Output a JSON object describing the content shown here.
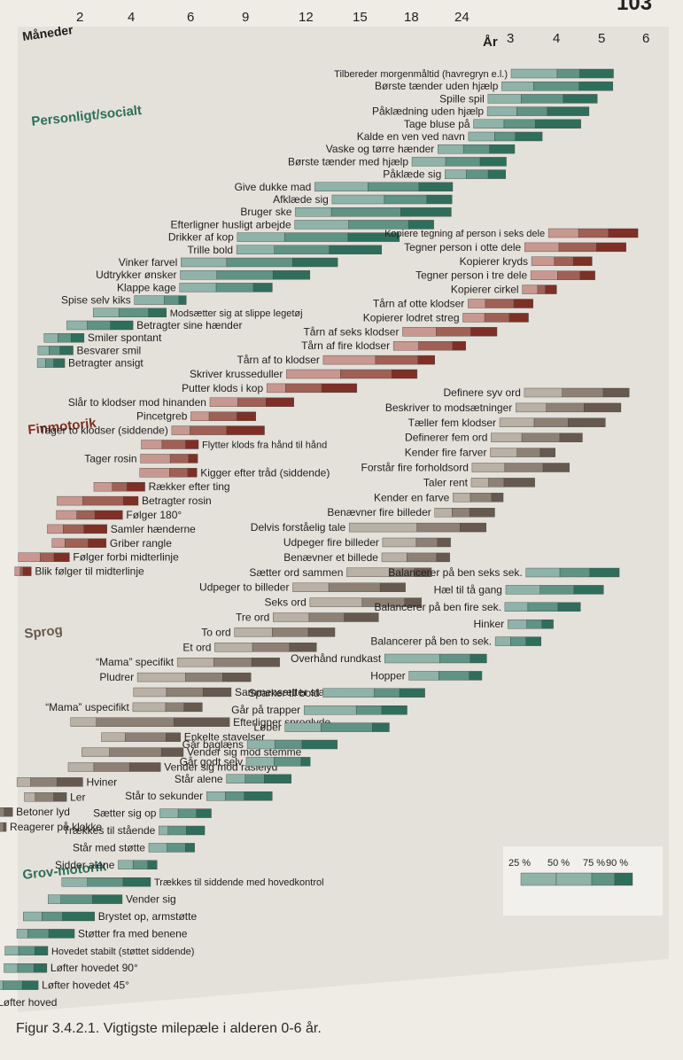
{
  "page_number": "103",
  "caption": "Figur 3.4.2.1. Vigtigste milepæle i alderen 0-6 år.",
  "colors": {
    "background": "#efece6",
    "panel": "#e4e1da",
    "personligt_socialt": {
      "light": "#8fb3a8",
      "mid": "#5f9384",
      "dark": "#2f6e5b"
    },
    "finmotorik": {
      "light": "#c89890",
      "mid": "#a06055",
      "dark": "#7e2f26"
    },
    "sprog": {
      "light": "#b9b0a6",
      "mid": "#8d8176",
      "dark": "#66594f"
    },
    "grovmotorik": {
      "light": "#8fb3a8",
      "mid": "#5f9384",
      "dark": "#2f6e5b"
    }
  },
  "chart_data": {
    "type": "bar",
    "subtype": "range-bars",
    "axis": {
      "label_months": "Måneder",
      "label_years": "År",
      "ticks": [
        {
          "label": "2",
          "months": 2
        },
        {
          "label": "4",
          "months": 4
        },
        {
          "label": "6",
          "months": 6
        },
        {
          "label": "9",
          "months": 9
        },
        {
          "label": "12",
          "months": 12
        },
        {
          "label": "15",
          "months": 15
        },
        {
          "label": "18",
          "months": 18
        },
        {
          "label": "24",
          "months": 24
        },
        {
          "label": "3",
          "months": 36
        },
        {
          "label": "4",
          "months": 48
        },
        {
          "label": "5",
          "months": 60
        },
        {
          "label": "6",
          "months": 72
        }
      ]
    },
    "legend": {
      "labels": [
        "25 %",
        "50 %",
        "75 %",
        "90 %"
      ],
      "placement": "bottom-right"
    },
    "groups": [
      {
        "key": "personligt_socialt",
        "title": "Personligt/socialt",
        "items": [
          {
            "label": "Tilbereder morgenmåltid (havregryn e.l.)",
            "p25": 36,
            "p50": 48,
            "p75": 54,
            "p90": 63
          },
          {
            "label": "Børste tænder uden hjælp",
            "p25": 34,
            "p50": 42,
            "p75": 54,
            "p90": 63
          },
          {
            "label": "Spille spil",
            "p25": 31,
            "p50": 39,
            "p75": 50,
            "p90": 59
          },
          {
            "label": "Påklædning uden hjælp",
            "p25": 31,
            "p50": 38,
            "p75": 46,
            "p90": 57
          },
          {
            "label": "Tage bluse på",
            "p25": 28,
            "p50": 35,
            "p75": 43,
            "p90": 55
          },
          {
            "label": "Kalde en ven ved navn",
            "p25": 27,
            "p50": 33,
            "p75": 38,
            "p90": 45
          },
          {
            "label": "Vaske og tørre hænder",
            "p25": 22,
            "p50": 26,
            "p75": 32,
            "p90": 38
          },
          {
            "label": "Børste tænder med hjælp",
            "p25": 19,
            "p50": 23,
            "p75": 30,
            "p90": 36
          },
          {
            "label": "Påklæde sig",
            "p25": 23,
            "p50": 27,
            "p75": 32,
            "p90": 36
          },
          {
            "label": "Give dukke mad",
            "p25": 13,
            "p50": 16,
            "p75": 20,
            "p90": 24
          },
          {
            "label": "Afklæde sig",
            "p25": 14,
            "p50": 17,
            "p75": 21,
            "p90": 24
          },
          {
            "label": "Bruger ske",
            "p25": 12,
            "p50": 14,
            "p75": 18,
            "p90": 24
          },
          {
            "label": "Efterligner husligt arbejde",
            "p25": 12,
            "p50": 15,
            "p75": 19,
            "p90": 22
          },
          {
            "label": "Drikker af kop",
            "p25": 9,
            "p50": 11.5,
            "p75": 15,
            "p90": 18
          },
          {
            "label": "Trille bold",
            "p25": 9,
            "p50": 11,
            "p75": 14,
            "p90": 17
          },
          {
            "label": "Vinker farvel",
            "p25": 6,
            "p50": 8.5,
            "p75": 12,
            "p90": 14.5
          },
          {
            "label": "Udtrykker ønsker",
            "p25": 6,
            "p50": 8,
            "p75": 11,
            "p90": 13
          },
          {
            "label": "Klappe kage",
            "p25": 6,
            "p50": 8,
            "p75": 10,
            "p90": 11
          },
          {
            "label": "Spise selv kiks",
            "p25": 4.5,
            "p50": 5.5,
            "p75": 6,
            "p90": 6.4
          },
          {
            "label": "Modsætter sig at slippe legetøj",
            "p25": 3,
            "p50": 4,
            "p75": 5,
            "p90": 5.6
          },
          {
            "label": "Betragter sine hænder",
            "p25": 2,
            "p50": 2.8,
            "p75": 3.7,
            "p90": 4.5
          },
          {
            "label": "Smiler spontant",
            "p25": 1.2,
            "p50": 1.7,
            "p75": 2.2,
            "p90": 2.7
          },
          {
            "label": "Besvarer smil",
            "p25": 1,
            "p50": 1.4,
            "p75": 1.8,
            "p90": 2.3
          },
          {
            "label": "Betragter ansigt",
            "p25": 1,
            "p50": 1.3,
            "p75": 1.6,
            "p90": 2
          }
        ]
      },
      {
        "key": "finmotorik",
        "title": "Finmotorik",
        "items": [
          {
            "label": "Kopiere tegning af person i seks dele",
            "p25": 48,
            "p50": 56,
            "p75": 64,
            "p90": 72
          },
          {
            "label": "Tegner person i otte dele",
            "p25": 42,
            "p50": 51,
            "p75": 61,
            "p90": 69
          },
          {
            "label": "Kopierer kryds",
            "p25": 44,
            "p50": 50,
            "p75": 55,
            "p90": 60
          },
          {
            "label": "Tegner person i tre dele",
            "p25": 44,
            "p50": 51,
            "p75": 57,
            "p90": 61
          },
          {
            "label": "Kopierer cirkel",
            "p25": 42,
            "p50": 46,
            "p75": 48,
            "p90": 51
          },
          {
            "label": "Tårn af otte klodser",
            "p25": 29,
            "p50": 33,
            "p75": 40,
            "p90": 45
          },
          {
            "label": "Kopierer lodret streg",
            "p25": 28,
            "p50": 33,
            "p75": 39,
            "p90": 44
          },
          {
            "label": "Tårn af seks klodser",
            "p25": 19,
            "p50": 23,
            "p75": 30,
            "p90": 36
          },
          {
            "label": "Tårn af fire klodser",
            "p25": 18,
            "p50": 21,
            "p75": 26,
            "p90": 29
          },
          {
            "label": "Tårn af to klodser",
            "p25": 14,
            "p50": 17,
            "p75": 21,
            "p90": 23
          },
          {
            "label": "Skriver krusseduller",
            "p25": 12,
            "p50": 15,
            "p75": 18,
            "p90": 21
          },
          {
            "label": "Putter klods i kop",
            "p25": 11,
            "p50": 12,
            "p75": 14,
            "p90": 16
          },
          {
            "label": "Slår to klodser mod hinanden",
            "p25": 8,
            "p50": 9.5,
            "p75": 11,
            "p90": 12.5
          },
          {
            "label": "Pincetgreb",
            "p25": 7,
            "p50": 8,
            "p75": 9.5,
            "p90": 10.5
          },
          {
            "label": "Tager to klodser (siddende)",
            "p25": 6,
            "p50": 7,
            "p75": 9,
            "p90": 11
          },
          {
            "label": "Flytter klods fra hånd til hånd",
            "p25": 5,
            "p50": 5.7,
            "p75": 6.8,
            "p90": 7.5
          },
          {
            "label": "Tager rosin",
            "p25": 5,
            "p50": 6,
            "p75": 7,
            "p90": 7.5
          },
          {
            "label": "Kigger efter tråd (siddende)",
            "p25": 5,
            "p50": 6,
            "p75": 7,
            "p90": 7.5
          },
          {
            "label": "Rækker efter ting",
            "p25": 3.4,
            "p50": 4.1,
            "p75": 4.6,
            "p90": 5.2
          },
          {
            "label": "Betragter rosin",
            "p25": 2,
            "p50": 3,
            "p75": 4.5,
            "p90": 5
          },
          {
            "label": "Følger 180°",
            "p25": 2,
            "p50": 2.8,
            "p75": 3.5,
            "p90": 4.5
          },
          {
            "label": "Samler hænderne",
            "p25": 1.7,
            "p50": 2.3,
            "p75": 3.1,
            "p90": 4
          },
          {
            "label": "Griber rangle",
            "p25": 1.9,
            "p50": 2.4,
            "p75": 3.3,
            "p90": 4
          },
          {
            "label": "Følger forbi midterlinje",
            "p25": 0.7,
            "p50": 1.5,
            "p75": 2,
            "p90": 2.6
          },
          {
            "label": "Blik følger til midterlinje",
            "p25": 0.6,
            "p50": 0.8,
            "p75": 0.9,
            "p90": 1.2
          }
        ]
      },
      {
        "key": "sprog",
        "title": "Sprog",
        "items": [
          {
            "label": "Definere syv ord",
            "p25": 44,
            "p50": 54,
            "p75": 65,
            "p90": 72
          },
          {
            "label": "Beskriver to modsætninger",
            "p25": 42,
            "p50": 50,
            "p75": 60,
            "p90": 70
          },
          {
            "label": "Tæller fem klodser",
            "p25": 38,
            "p50": 47,
            "p75": 56,
            "p90": 66
          },
          {
            "label": "Definerer fem ord",
            "p25": 36,
            "p50": 44,
            "p75": 54,
            "p90": 60
          },
          {
            "label": "Kender fire farver",
            "p25": 36,
            "p50": 43,
            "p75": 49,
            "p90": 53
          },
          {
            "label": "Forstår fire forholdsord",
            "p25": 32,
            "p50": 40,
            "p75": 50,
            "p90": 57
          },
          {
            "label": "Taler rent",
            "p25": 32,
            "p50": 36,
            "p75": 40,
            "p90": 48
          },
          {
            "label": "Kender en farve",
            "p25": 28,
            "p50": 32,
            "p75": 37,
            "p90": 40
          },
          {
            "label": "Benævner fire billeder",
            "p25": 24,
            "p50": 28,
            "p75": 32,
            "p90": 38
          },
          {
            "label": "Delvis forståelig tale",
            "p25": 16,
            "p50": 22,
            "p75": 30,
            "p90": 36
          },
          {
            "label": "Udpeger fire billeder",
            "p25": 18,
            "p50": 22,
            "p75": 25,
            "p90": 28
          },
          {
            "label": "Benævner et billede",
            "p25": 18,
            "p50": 21,
            "p75": 25,
            "p90": 28
          },
          {
            "label": "Sætter ord sammen",
            "p25": 16,
            "p50": 19,
            "p75": 22,
            "p90": 24
          },
          {
            "label": "Udpeger to billeder",
            "p25": 13,
            "p50": 15,
            "p75": 18,
            "p90": 21
          },
          {
            "label": "Seks ord",
            "p25": 14,
            "p50": 17,
            "p75": 21,
            "p90": 23
          },
          {
            "label": "Tre ord",
            "p25": 12,
            "p50": 14,
            "p75": 16,
            "p90": 18
          },
          {
            "label": "To ord",
            "p25": 10,
            "p50": 12,
            "p75": 14,
            "p90": 15.5
          },
          {
            "label": "Et ord",
            "p25": 9,
            "p50": 11,
            "p75": 13,
            "p90": 14.5
          },
          {
            "label": "“Mama” specifikt",
            "p25": 7,
            "p50": 9,
            "p75": 11,
            "p90": 12.5
          },
          {
            "label": "Pludrer",
            "p25": 5.3,
            "p50": 7.5,
            "p75": 9.5,
            "p90": 11
          },
          {
            "label": "Sammensætter stavelser",
            "p25": 5.2,
            "p50": 6.5,
            "p75": 8.5,
            "p90": 10
          },
          {
            "label": "“Mama” uspecifikt",
            "p25": 5.2,
            "p50": 6.5,
            "p75": 7.5,
            "p90": 8.5
          },
          {
            "label": "Efterligner sproglyde",
            "p25": 3,
            "p50": 4,
            "p75": 7,
            "p90": 10
          },
          {
            "label": "Enkelte stavelser",
            "p25": 4.2,
            "p50": 5,
            "p75": 6.6,
            "p90": 7.4
          },
          {
            "label": "Vender sig mod stemme",
            "p25": 3.5,
            "p50": 4.5,
            "p75": 6.4,
            "p90": 7.6
          },
          {
            "label": "Vender sig mod raslelyd",
            "p25": 3,
            "p50": 4,
            "p75": 5.2,
            "p90": 6.4
          },
          {
            "label": "Hviner",
            "p25": 1.1,
            "p50": 1.6,
            "p75": 2.6,
            "p90": 3.6
          },
          {
            "label": "Ler",
            "p25": 1.4,
            "p50": 1.8,
            "p75": 2.5,
            "p90": 3
          },
          {
            "label": "Betoner lyd",
            "p25": 0.3,
            "p50": 0.5,
            "p75": 0.7,
            "p90": 1
          },
          {
            "label": "Reagerer på klokke",
            "p25": 0.3,
            "p50": 0.5,
            "p75": 0.7,
            "p90": 0.8
          }
        ]
      },
      {
        "key": "grovmotorik",
        "title": "Grov-motorik",
        "items": [
          {
            "label": "Balancerer på ben seks sek.",
            "p25": 47,
            "p50": 56,
            "p75": 64,
            "p90": 72
          },
          {
            "label": "Hæl til tå gang",
            "p25": 42,
            "p50": 51,
            "p75": 60,
            "p90": 68
          },
          {
            "label": "Balancerer på ben fire sek.",
            "p25": 42,
            "p50": 48,
            "p75": 56,
            "p90": 62
          },
          {
            "label": "Hinker",
            "p25": 43,
            "p50": 48,
            "p75": 52,
            "p90": 55
          },
          {
            "label": "Balancerer på ben to sek.",
            "p25": 40,
            "p50": 44,
            "p75": 48,
            "p90": 52
          },
          {
            "label": "Overhånd rundkast",
            "p25": 19,
            "p50": 27,
            "p75": 34,
            "p90": 38
          },
          {
            "label": "Hopper",
            "p25": 22,
            "p50": 27,
            "p75": 34,
            "p90": 37
          },
          {
            "label": "Sparker til bold",
            "p25": 15,
            "p50": 18,
            "p75": 21,
            "p90": 24
          },
          {
            "label": "Går på trapper",
            "p25": 14,
            "p50": 17,
            "p75": 19,
            "p90": 22
          },
          {
            "label": "Løber",
            "p25": 13,
            "p50": 15,
            "p75": 18,
            "p90": 20
          },
          {
            "label": "Går baglæns",
            "p25": 11,
            "p50": 12.5,
            "p75": 14,
            "p90": 16
          },
          {
            "label": "Går godt selv",
            "p25": 11,
            "p50": 12.5,
            "p75": 14,
            "p90": 14.5
          },
          {
            "label": "Står alene",
            "p25": 10,
            "p50": 11,
            "p75": 12,
            "p90": 13.5
          },
          {
            "label": "Står to sekunder",
            "p25": 9,
            "p50": 10,
            "p75": 11,
            "p90": 12.5
          },
          {
            "label": "Sætter sig op",
            "p25": 6.5,
            "p50": 7.5,
            "p75": 8.5,
            "p90": 9.3
          },
          {
            "label": "Trækkes til stående",
            "p25": 6.5,
            "p50": 7,
            "p75": 8,
            "p90": 9
          },
          {
            "label": "Står med støtte",
            "p25": 6,
            "p50": 7,
            "p75": 8,
            "p90": 8.5
          },
          {
            "label": "Sidder alene",
            "p25": 5,
            "p50": 5.5,
            "p75": 6,
            "p90": 6.5
          },
          {
            "label": "Trækkes til siddende med hovedkontrol",
            "p25": 3,
            "p50": 4,
            "p75": 5.2,
            "p90": 6.2
          },
          {
            "label": "Vender sig",
            "p25": 2.5,
            "p50": 3,
            "p75": 4.2,
            "p90": 5.2
          },
          {
            "label": "Brystet op, armstøtte",
            "p25": 1.6,
            "p50": 2.3,
            "p75": 3.1,
            "p90": 4.3
          },
          {
            "label": "Støtter fra med benene",
            "p25": 1.4,
            "p50": 1.8,
            "p75": 2.6,
            "p90": 3.6
          },
          {
            "label": "Hovedet stabilt (støttet siddende)",
            "p25": 1,
            "p50": 1.5,
            "p75": 2.1,
            "p90": 2.6
          },
          {
            "label": "Løfter hovedet 90°",
            "p25": 1,
            "p50": 1.5,
            "p75": 2.1,
            "p90": 2.6
          },
          {
            "label": "Løfter hovedet 45°",
            "p25": 0.6,
            "p50": 1,
            "p75": 1.7,
            "p90": 2.3
          },
          {
            "label": "Løfter hoved",
            "p25": 0.2,
            "p50": 0.3,
            "p75": 0.5,
            "p90": 0.7
          }
        ]
      }
    ]
  }
}
